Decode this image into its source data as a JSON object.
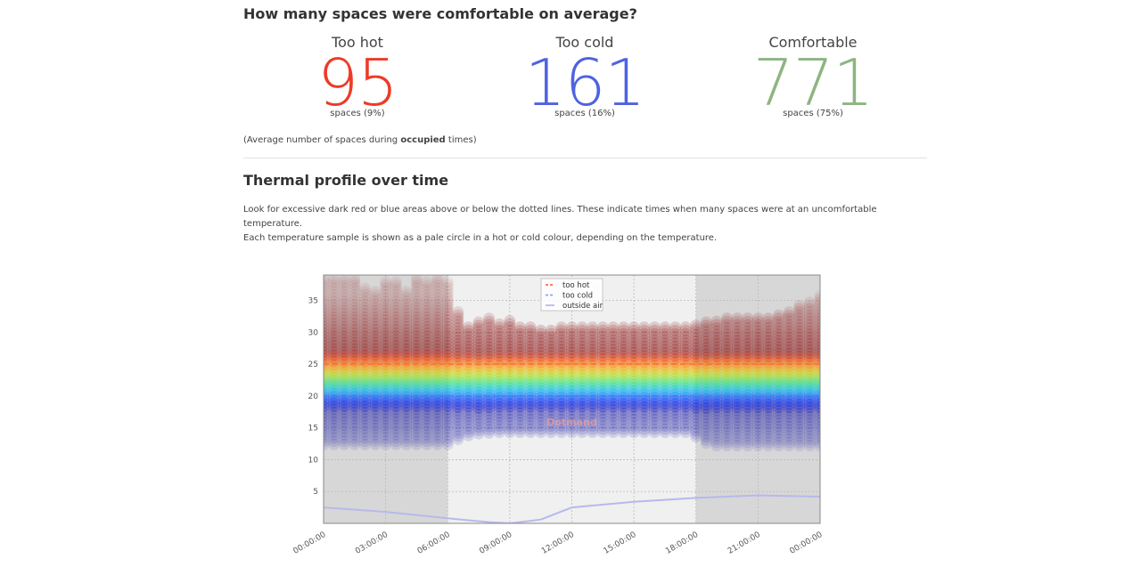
{
  "summary": {
    "heading": "How many spaces were comfortable on average?",
    "stats": [
      {
        "label": "Too hot",
        "value": "95",
        "sub": "spaces (9%)",
        "color": "#ee3a26"
      },
      {
        "label": "Too cold",
        "value": "161",
        "sub": "spaces (16%)",
        "color": "#4f62e0"
      },
      {
        "label": "Comfortable",
        "value": "771",
        "sub": "spaces (75%)",
        "color": "#8db582"
      }
    ],
    "note_prefix": "(Average number of spaces during ",
    "note_bold": "occupied",
    "note_suffix": " times)"
  },
  "profile": {
    "heading": "Thermal profile over time",
    "description_line1": "Look for excessive dark red or blue areas above or below the dotted lines. These indicate times when many spaces were at an uncomfortable temperature.",
    "description_line2": "Each temperature sample is shown as a pale circle in a hot or cold colour, depending on the temperature."
  },
  "chart_data": {
    "type": "scatter",
    "title": "",
    "xlabel": "",
    "ylabel": "",
    "x_ticks": [
      "00:00:00",
      "03:00:00",
      "06:00:00",
      "09:00:00",
      "12:00:00",
      "15:00:00",
      "18:00:00",
      "21:00:00",
      "00:00:00"
    ],
    "xlim_hours": [
      0,
      24
    ],
    "y_ticks": [
      5,
      10,
      15,
      20,
      25,
      30,
      35
    ],
    "ylim": [
      0,
      39
    ],
    "grid": true,
    "legend_position": "top-center",
    "watermark": "Dotmand",
    "thresholds": {
      "too_hot": 25,
      "too_cold": 20
    },
    "shaded_periods_hours": [
      [
        0,
        6
      ],
      [
        18,
        24
      ]
    ],
    "series": [
      {
        "name": "too hot",
        "color": "#ff6a4a",
        "style": "dashed"
      },
      {
        "name": "too cold",
        "color": "#8fa3ef",
        "style": "dashed"
      },
      {
        "name": "outside air",
        "color": "#b8b8ee",
        "style": "solid",
        "x": [
          0,
          3,
          6,
          8,
          9,
          10.5,
          12,
          15,
          18,
          21,
          24
        ],
        "y": [
          2.5,
          1.8,
          0.8,
          0.2,
          0.0,
          0.6,
          2.5,
          3.4,
          4.0,
          4.4,
          4.2
        ]
      }
    ],
    "samples": {
      "x_hours": [
        0,
        0.5,
        1,
        1.5,
        2,
        2.5,
        3,
        3.5,
        4,
        4.5,
        5,
        5.5,
        6,
        6.5,
        7,
        7.5,
        8,
        8.5,
        9,
        9.5,
        10,
        10.5,
        11,
        11.5,
        12,
        12.5,
        13,
        13.5,
        14,
        14.5,
        15,
        15.5,
        16,
        16.5,
        17,
        17.5,
        18,
        18.5,
        19,
        19.5,
        20,
        20.5,
        21,
        21.5,
        22,
        22.5,
        23,
        23.5,
        24
      ],
      "y_min": [
        12.4,
        12.4,
        12.4,
        12.4,
        12.4,
        12.4,
        12.4,
        12.4,
        12.4,
        12.4,
        12.4,
        12.4,
        12.4,
        13.2,
        13.8,
        14.1,
        14.2,
        14.3,
        14.3,
        14.3,
        14.3,
        14.3,
        14.3,
        14.3,
        14.3,
        14.3,
        14.3,
        14.3,
        14.3,
        14.3,
        14.3,
        14.3,
        14.3,
        14.3,
        14.3,
        14.3,
        13.6,
        12.6,
        12.2,
        12.2,
        12.2,
        12.2,
        12.2,
        12.2,
        12.2,
        12.2,
        12.2,
        12.2,
        12.2
      ],
      "y_max": [
        38.8,
        38.8,
        38.8,
        38.8,
        37.2,
        36.8,
        38.2,
        38.0,
        36.6,
        38.6,
        38.0,
        38.6,
        38.0,
        33.2,
        31.2,
        31.8,
        32.4,
        31.6,
        32.0,
        31.2,
        31.0,
        30.7,
        30.7,
        31.0,
        31.0,
        31.2,
        30.8,
        30.8,
        30.8,
        31.0,
        30.8,
        30.8,
        30.8,
        31.0,
        30.8,
        31.0,
        31.4,
        31.8,
        31.8,
        32.2,
        32.5,
        32.5,
        32.5,
        32.5,
        32.8,
        33.2,
        34.2,
        34.8,
        35.8
      ]
    }
  }
}
